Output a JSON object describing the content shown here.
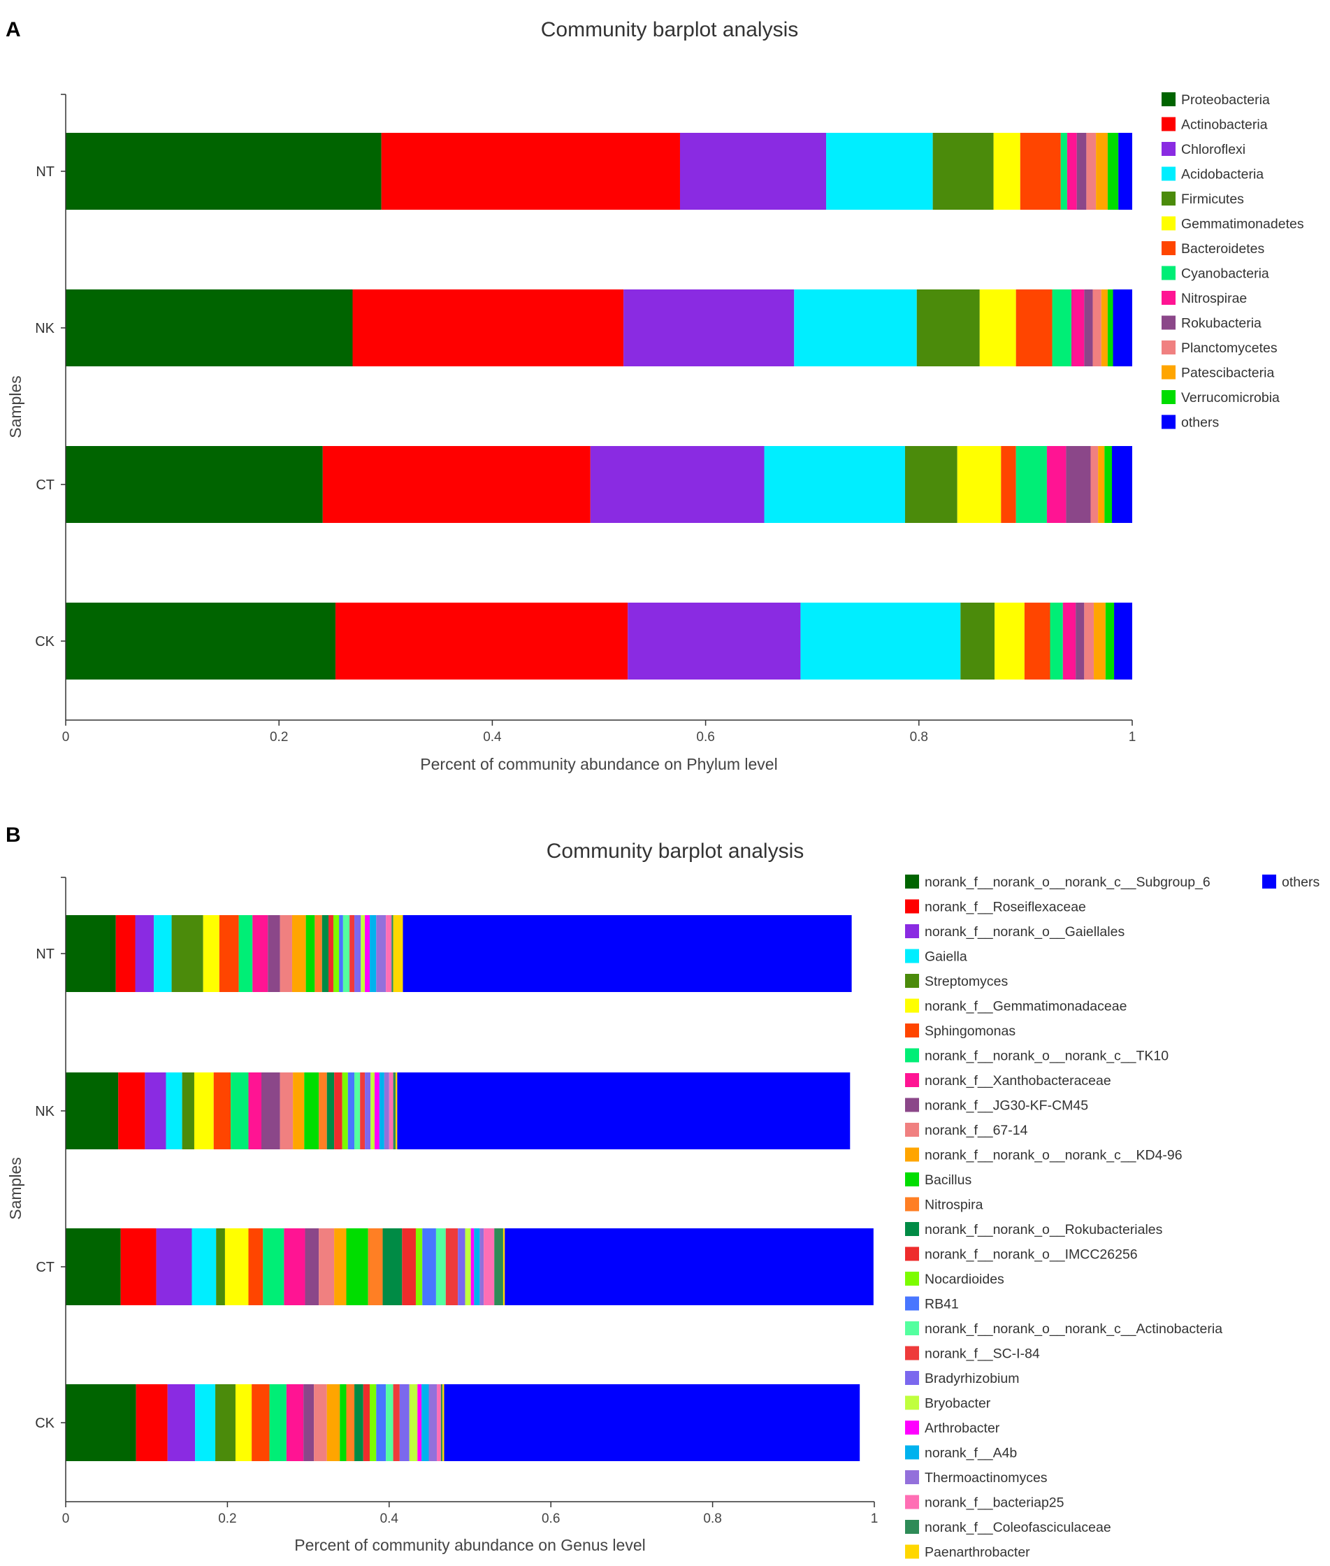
{
  "chart_data": [
    {
      "type": "bar",
      "orientation": "horizontal",
      "stacked": true,
      "panel_label": "A",
      "title": "Community barplot analysis",
      "xlabel": "Percent of community abundance on Phylum level",
      "ylabel": "Samples",
      "xlim": [
        0,
        1
      ],
      "xticks": [
        "0",
        "0.2",
        "0.4",
        "0.6",
        "0.8",
        "1"
      ],
      "categories": [
        "NT",
        "NK",
        "CT",
        "CK"
      ],
      "legend_position": "right",
      "series": [
        {
          "name": "Proteobacteria",
          "color": "#006400",
          "values": [
            0.296,
            0.269,
            0.241,
            0.253
          ]
        },
        {
          "name": "Actinobacteria",
          "color": "#ff0000",
          "values": [
            0.28,
            0.254,
            0.251,
            0.274
          ]
        },
        {
          "name": "Chloroflexi",
          "color": "#8a2be2",
          "values": [
            0.137,
            0.16,
            0.163,
            0.162
          ]
        },
        {
          "name": "Acidobacteria",
          "color": "#00eeff",
          "values": [
            0.1,
            0.115,
            0.132,
            0.15
          ]
        },
        {
          "name": "Firmicutes",
          "color": "#4b8b0b",
          "values": [
            0.057,
            0.059,
            0.049,
            0.032
          ]
        },
        {
          "name": "Gemmatimonadetes",
          "color": "#ffff00",
          "values": [
            0.025,
            0.034,
            0.041,
            0.028
          ]
        },
        {
          "name": "Bacteroidetes",
          "color": "#ff4500",
          "values": [
            0.038,
            0.034,
            0.014,
            0.024
          ]
        },
        {
          "name": "Cyanobacteria",
          "color": "#00ee76",
          "values": [
            0.006,
            0.018,
            0.029,
            0.012
          ]
        },
        {
          "name": "Nitrospirae",
          "color": "#ff1493",
          "values": [
            0.009,
            0.012,
            0.018,
            0.012
          ]
        },
        {
          "name": "Rokubacteria",
          "color": "#8b4789",
          "values": [
            0.009,
            0.008,
            0.023,
            0.008
          ]
        },
        {
          "name": "Planctomycetes",
          "color": "#f08080",
          "values": [
            0.009,
            0.008,
            0.007,
            0.009
          ]
        },
        {
          "name": "Patescibacteria",
          "color": "#ffa500",
          "values": [
            0.011,
            0.006,
            0.006,
            0.011
          ]
        },
        {
          "name": "Verrucomicrobia",
          "color": "#00dd00",
          "values": [
            0.01,
            0.005,
            0.007,
            0.008
          ]
        },
        {
          "name": "others",
          "color": "#0000ff",
          "values": [
            0.013,
            0.018,
            0.019,
            0.017
          ]
        }
      ]
    },
    {
      "type": "bar",
      "orientation": "horizontal",
      "stacked": true,
      "panel_label": "B",
      "title": "Community barplot analysis",
      "xlabel": "Percent of community abundance on Genus level",
      "ylabel": "Samples",
      "xlim": [
        0,
        1
      ],
      "xticks": [
        "0",
        "0.2",
        "0.4",
        "0.6",
        "0.8",
        "1"
      ],
      "categories": [
        "NT",
        "NK",
        "CT",
        "CK"
      ],
      "legend_position": "right",
      "series": [
        {
          "name": "norank_f__norank_o__norank_c__Subgroup_6",
          "color": "#006400",
          "values": [
            0.062,
            0.065,
            0.068,
            0.087
          ]
        },
        {
          "name": "norank_f__Roseiflexaceae",
          "color": "#ff0000",
          "values": [
            0.024,
            0.033,
            0.044,
            0.039
          ]
        },
        {
          "name": "norank_f__norank_o__Gaiellales",
          "color": "#8a2be2",
          "values": [
            0.023,
            0.026,
            0.044,
            0.034
          ]
        },
        {
          "name": "Gaiella",
          "color": "#00eeff",
          "values": [
            0.022,
            0.02,
            0.03,
            0.025
          ]
        },
        {
          "name": "Streptomyces",
          "color": "#4b8b0b",
          "values": [
            0.039,
            0.015,
            0.011,
            0.025
          ]
        },
        {
          "name": "norank_f__Gemmatimonadaceae",
          "color": "#ffff00",
          "values": [
            0.02,
            0.024,
            0.029,
            0.02
          ]
        },
        {
          "name": "Sphingomonas",
          "color": "#ff4500",
          "values": [
            0.024,
            0.021,
            0.018,
            0.022
          ]
        },
        {
          "name": "norank_f__norank_o__norank_c__TK10",
          "color": "#00ee76",
          "values": [
            0.017,
            0.022,
            0.026,
            0.021
          ]
        },
        {
          "name": "norank_f__Xanthobacteraceae",
          "color": "#ff1493",
          "values": [
            0.019,
            0.016,
            0.026,
            0.021
          ]
        },
        {
          "name": "norank_f__JG30-KF-CM45",
          "color": "#8b4789",
          "values": [
            0.015,
            0.023,
            0.017,
            0.013
          ]
        },
        {
          "name": "norank_f__67-14",
          "color": "#f08080",
          "values": [
            0.015,
            0.016,
            0.019,
            0.016
          ]
        },
        {
          "name": "norank_f__norank_o__norank_c__KD4-96",
          "color": "#ffa500",
          "values": [
            0.017,
            0.014,
            0.015,
            0.016
          ]
        },
        {
          "name": "Bacillus",
          "color": "#00dd00",
          "values": [
            0.011,
            0.018,
            0.027,
            0.008
          ]
        },
        {
          "name": "Nitrospira",
          "color": "#ff7f24",
          "values": [
            0.009,
            0.01,
            0.018,
            0.01
          ]
        },
        {
          "name": "norank_f__norank_o__Rokubacteriales",
          "color": "#008b45",
          "values": [
            0.008,
            0.009,
            0.024,
            0.011
          ]
        },
        {
          "name": "norank_f__norank_o__IMCC26256",
          "color": "#ee2c2c",
          "values": [
            0.006,
            0.01,
            0.017,
            0.008
          ]
        },
        {
          "name": "Nocardioides",
          "color": "#7cfc00",
          "values": [
            0.007,
            0.007,
            0.008,
            0.008
          ]
        },
        {
          "name": "RB41",
          "color": "#4876ff",
          "values": [
            0.005,
            0.008,
            0.017,
            0.012
          ]
        },
        {
          "name": "norank_f__norank_o__norank_c__Actinobacteria",
          "color": "#54ff9f",
          "values": [
            0.008,
            0.007,
            0.012,
            0.009
          ]
        },
        {
          "name": "norank_f__SC-I-84",
          "color": "#ee3b3b",
          "values": [
            0.006,
            0.006,
            0.015,
            0.008
          ]
        },
        {
          "name": "Bradyrhizobium",
          "color": "#7b68ee",
          "values": [
            0.008,
            0.007,
            0.009,
            0.012
          ]
        },
        {
          "name": "Bryobacter",
          "color": "#c0ff3e",
          "values": [
            0.005,
            0.005,
            0.007,
            0.01
          ]
        },
        {
          "name": "Arthrobacter",
          "color": "#ff00ff",
          "values": [
            0.006,
            0.006,
            0.004,
            0.005
          ]
        },
        {
          "name": "norank_f__A4b",
          "color": "#00b2ee",
          "values": [
            0.008,
            0.006,
            0.007,
            0.009
          ]
        },
        {
          "name": "Thermoactinomyces",
          "color": "#9370db",
          "values": [
            0.012,
            0.006,
            0.005,
            0.01
          ]
        },
        {
          "name": "norank_f__bacteriap25",
          "color": "#ff6eb4",
          "values": [
            0.007,
            0.005,
            0.013,
            0.005
          ]
        },
        {
          "name": "norank_f__Coleofasciculaceae",
          "color": "#2e8b57",
          "values": [
            0.002,
            0.003,
            0.011,
            0.002
          ]
        },
        {
          "name": "Paenarthrobacter",
          "color": "#ffd700",
          "values": [
            0.012,
            0.002,
            0.002,
            0.002
          ]
        },
        {
          "name": "others",
          "color": "#0000ff",
          "values": [
            0.555,
            0.56,
            0.456,
            0.514
          ]
        }
      ]
    }
  ]
}
